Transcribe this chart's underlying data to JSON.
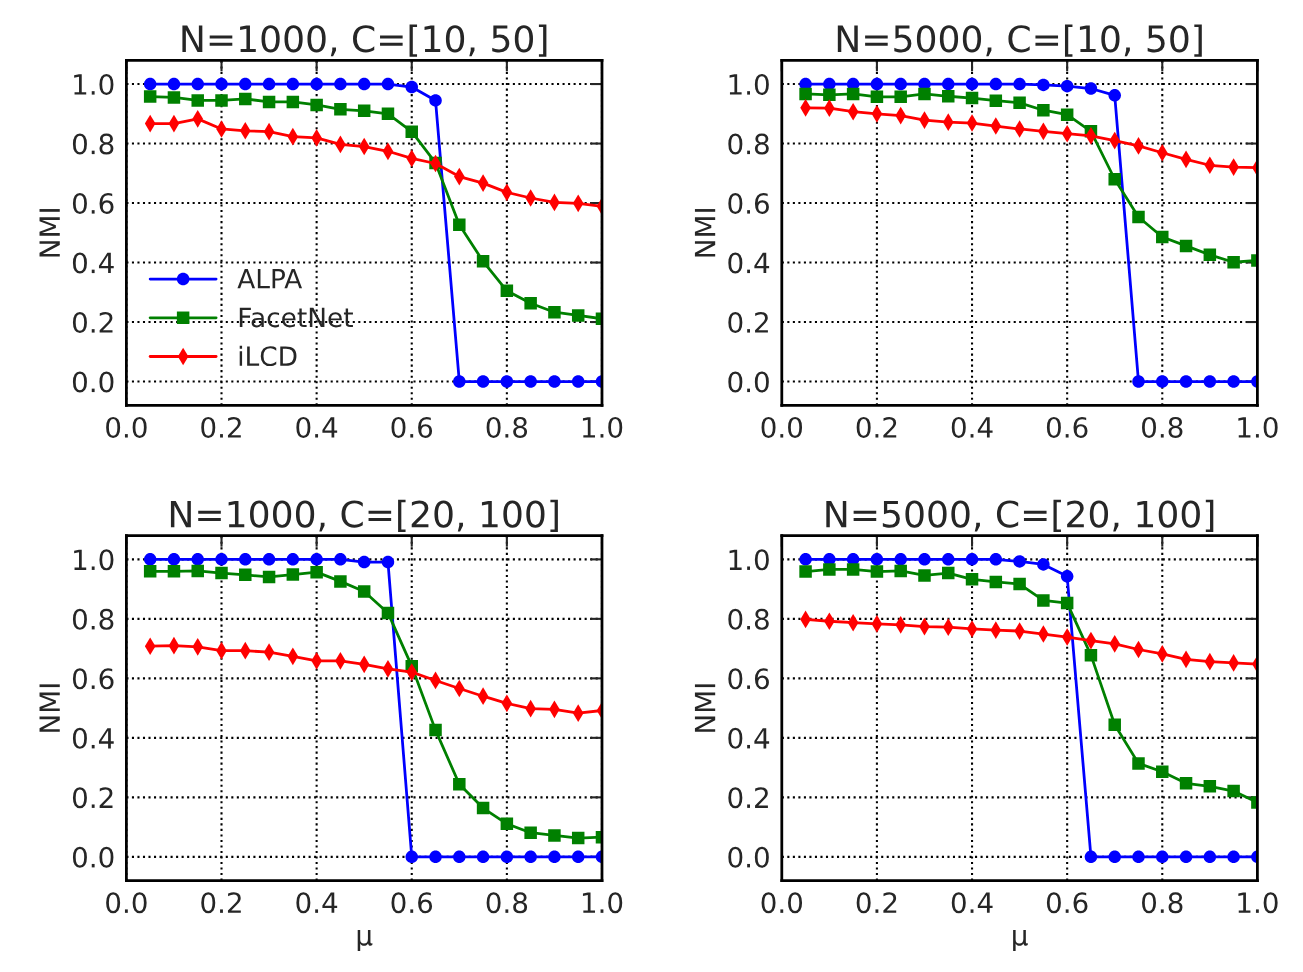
{
  "chart_data": [
    {
      "type": "line",
      "title": "N=1000, C=[10, 50]",
      "ylabel": "NMI",
      "x": [
        0.05,
        0.1,
        0.15,
        0.2,
        0.25,
        0.3,
        0.35,
        0.4,
        0.45,
        0.5,
        0.55,
        0.6,
        0.65,
        0.7,
        0.75,
        0.8,
        0.85,
        0.9,
        0.95,
        1.0
      ],
      "xlim": [
        0.0,
        1.0
      ],
      "xticks": [
        {
          "value": 0.0,
          "label": "0.0"
        },
        {
          "value": 0.2,
          "label": "0.2"
        },
        {
          "value": 0.4,
          "label": "0.4"
        },
        {
          "value": 0.6,
          "label": "0.6"
        },
        {
          "value": 0.8,
          "label": "0.8"
        },
        {
          "value": 1.0,
          "label": "1.0"
        }
      ],
      "ylim": [
        -0.08,
        1.08
      ],
      "yticks": [
        {
          "value": 0.0,
          "label": "0.0"
        },
        {
          "value": 0.2,
          "label": "0.2"
        },
        {
          "value": 0.4,
          "label": "0.4"
        },
        {
          "value": 0.6,
          "label": "0.6"
        },
        {
          "value": 0.8,
          "label": "0.8"
        },
        {
          "value": 1.0,
          "label": "1.0"
        }
      ],
      "grid": true,
      "legend": "bottom left",
      "series": [
        {
          "name": "ALPA",
          "color": "#0000ff",
          "marker": "circle",
          "values": [
            1.0,
            1.0,
            1.0,
            1.0,
            1.0,
            1.0,
            1.0,
            1.0,
            1.0,
            1.0,
            1.0,
            0.99,
            0.945,
            0.0,
            0.0,
            0.0,
            0.0,
            0.0,
            0.0,
            0.0
          ]
        },
        {
          "name": "FacetNet",
          "color": "#008000",
          "marker": "square",
          "values": [
            0.958,
            0.955,
            0.945,
            0.945,
            0.95,
            0.94,
            0.94,
            0.93,
            0.915,
            0.91,
            0.9,
            0.84,
            0.735,
            0.527,
            0.404,
            0.305,
            0.263,
            0.233,
            0.222,
            0.211
          ]
        },
        {
          "name": "iLCD",
          "color": "#ff0000",
          "marker": "diamond",
          "values": [
            0.867,
            0.867,
            0.883,
            0.849,
            0.843,
            0.84,
            0.823,
            0.819,
            0.797,
            0.79,
            0.774,
            0.75,
            0.733,
            0.689,
            0.667,
            0.636,
            0.617,
            0.602,
            0.599,
            0.589
          ]
        }
      ]
    },
    {
      "type": "line",
      "title": "N=5000, C=[10, 50]",
      "ylabel": "NMI",
      "x": [
        0.05,
        0.1,
        0.15,
        0.2,
        0.25,
        0.3,
        0.35,
        0.4,
        0.45,
        0.5,
        0.55,
        0.6,
        0.65,
        0.7,
        0.75,
        0.8,
        0.85,
        0.9,
        0.95,
        1.0
      ],
      "xlim": [
        0.0,
        1.0
      ],
      "xticks": [
        {
          "value": 0.0,
          "label": "0.0"
        },
        {
          "value": 0.2,
          "label": "0.2"
        },
        {
          "value": 0.4,
          "label": "0.4"
        },
        {
          "value": 0.6,
          "label": "0.6"
        },
        {
          "value": 0.8,
          "label": "0.8"
        },
        {
          "value": 1.0,
          "label": "1.0"
        }
      ],
      "ylim": [
        -0.08,
        1.08
      ],
      "yticks": [
        {
          "value": 0.0,
          "label": "0.0"
        },
        {
          "value": 0.2,
          "label": "0.2"
        },
        {
          "value": 0.4,
          "label": "0.4"
        },
        {
          "value": 0.6,
          "label": "0.6"
        },
        {
          "value": 0.8,
          "label": "0.8"
        },
        {
          "value": 1.0,
          "label": "1.0"
        }
      ],
      "grid": true,
      "series": [
        {
          "color": "#0000ff",
          "marker": "circle",
          "values": [
            1.0,
            1.0,
            1.0,
            1.0,
            1.0,
            1.0,
            1.0,
            1.0,
            1.0,
            1.0,
            0.997,
            0.993,
            0.985,
            0.962,
            0.0,
            0.0,
            0.0,
            0.0,
            0.0,
            0.0
          ]
        },
        {
          "color": "#008000",
          "marker": "square",
          "values": [
            0.967,
            0.964,
            0.967,
            0.957,
            0.957,
            0.967,
            0.959,
            0.953,
            0.944,
            0.937,
            0.912,
            0.897,
            0.841,
            0.68,
            0.553,
            0.486,
            0.456,
            0.426,
            0.401,
            0.407
          ]
        },
        {
          "color": "#ff0000",
          "marker": "diamond",
          "values": [
            0.92,
            0.919,
            0.907,
            0.9,
            0.894,
            0.879,
            0.872,
            0.869,
            0.859,
            0.849,
            0.841,
            0.833,
            0.826,
            0.81,
            0.792,
            0.769,
            0.747,
            0.727,
            0.721,
            0.719
          ]
        }
      ]
    },
    {
      "type": "line",
      "title": "N=1000, C=[20, 100]",
      "xlabel": "μ",
      "ylabel": "NMI",
      "x": [
        0.05,
        0.1,
        0.15,
        0.2,
        0.25,
        0.3,
        0.35,
        0.4,
        0.45,
        0.5,
        0.55,
        0.6,
        0.65,
        0.7,
        0.75,
        0.8,
        0.85,
        0.9,
        0.95,
        1.0
      ],
      "xlim": [
        0.0,
        1.0
      ],
      "xticks": [
        {
          "value": 0.0,
          "label": "0.0"
        },
        {
          "value": 0.2,
          "label": "0.2"
        },
        {
          "value": 0.4,
          "label": "0.4"
        },
        {
          "value": 0.6,
          "label": "0.6"
        },
        {
          "value": 0.8,
          "label": "0.8"
        },
        {
          "value": 1.0,
          "label": "1.0"
        }
      ],
      "ylim": [
        -0.08,
        1.08
      ],
      "yticks": [
        {
          "value": 0.0,
          "label": "0.0"
        },
        {
          "value": 0.2,
          "label": "0.2"
        },
        {
          "value": 0.4,
          "label": "0.4"
        },
        {
          "value": 0.6,
          "label": "0.6"
        },
        {
          "value": 0.8,
          "label": "0.8"
        },
        {
          "value": 1.0,
          "label": "1.0"
        }
      ],
      "grid": true,
      "series": [
        {
          "color": "#0000ff",
          "marker": "circle",
          "values": [
            1.0,
            1.0,
            1.0,
            1.0,
            1.0,
            1.0,
            1.0,
            1.0,
            1.0,
            0.991,
            0.991,
            0.0,
            0.0,
            0.0,
            0.0,
            0.0,
            0.0,
            0.0,
            0.0,
            0.0
          ]
        },
        {
          "color": "#008000",
          "marker": "square",
          "values": [
            0.96,
            0.96,
            0.961,
            0.954,
            0.948,
            0.941,
            0.949,
            0.957,
            0.926,
            0.892,
            0.82,
            0.641,
            0.426,
            0.244,
            0.164,
            0.111,
            0.081,
            0.072,
            0.063,
            0.066
          ]
        },
        {
          "color": "#ff0000",
          "marker": "diamond",
          "values": [
            0.708,
            0.71,
            0.706,
            0.693,
            0.693,
            0.688,
            0.674,
            0.659,
            0.659,
            0.647,
            0.632,
            0.621,
            0.593,
            0.566,
            0.54,
            0.516,
            0.498,
            0.496,
            0.483,
            0.492
          ]
        }
      ]
    },
    {
      "type": "line",
      "title": "N=5000, C=[20, 100]",
      "xlabel": "μ",
      "ylabel": "NMI",
      "x": [
        0.05,
        0.1,
        0.15,
        0.2,
        0.25,
        0.3,
        0.35,
        0.4,
        0.45,
        0.5,
        0.55,
        0.6,
        0.65,
        0.7,
        0.75,
        0.8,
        0.85,
        0.9,
        0.95,
        1.0
      ],
      "xlim": [
        0.0,
        1.0
      ],
      "xticks": [
        {
          "value": 0.0,
          "label": "0.0"
        },
        {
          "value": 0.2,
          "label": "0.2"
        },
        {
          "value": 0.4,
          "label": "0.4"
        },
        {
          "value": 0.6,
          "label": "0.6"
        },
        {
          "value": 0.8,
          "label": "0.8"
        },
        {
          "value": 1.0,
          "label": "1.0"
        }
      ],
      "ylim": [
        -0.08,
        1.08
      ],
      "yticks": [
        {
          "value": 0.0,
          "label": "0.0"
        },
        {
          "value": 0.2,
          "label": "0.2"
        },
        {
          "value": 0.4,
          "label": "0.4"
        },
        {
          "value": 0.6,
          "label": "0.6"
        },
        {
          "value": 0.8,
          "label": "0.8"
        },
        {
          "value": 1.0,
          "label": "1.0"
        }
      ],
      "grid": true,
      "series": [
        {
          "color": "#0000ff",
          "marker": "circle",
          "values": [
            1.0,
            1.0,
            1.0,
            1.0,
            1.0,
            1.0,
            1.0,
            1.0,
            1.0,
            0.993,
            0.983,
            0.943,
            0.0,
            0.0,
            0.0,
            0.0,
            0.0,
            0.0,
            0.0,
            0.0
          ]
        },
        {
          "color": "#008000",
          "marker": "square",
          "values": [
            0.959,
            0.966,
            0.966,
            0.959,
            0.961,
            0.946,
            0.954,
            0.933,
            0.924,
            0.917,
            0.862,
            0.853,
            0.678,
            0.444,
            0.314,
            0.286,
            0.247,
            0.237,
            0.221,
            0.183
          ]
        },
        {
          "color": "#ff0000",
          "marker": "diamond",
          "values": [
            0.798,
            0.792,
            0.787,
            0.783,
            0.78,
            0.774,
            0.772,
            0.766,
            0.762,
            0.759,
            0.749,
            0.739,
            0.727,
            0.716,
            0.697,
            0.682,
            0.664,
            0.656,
            0.652,
            0.648
          ]
        }
      ]
    }
  ]
}
